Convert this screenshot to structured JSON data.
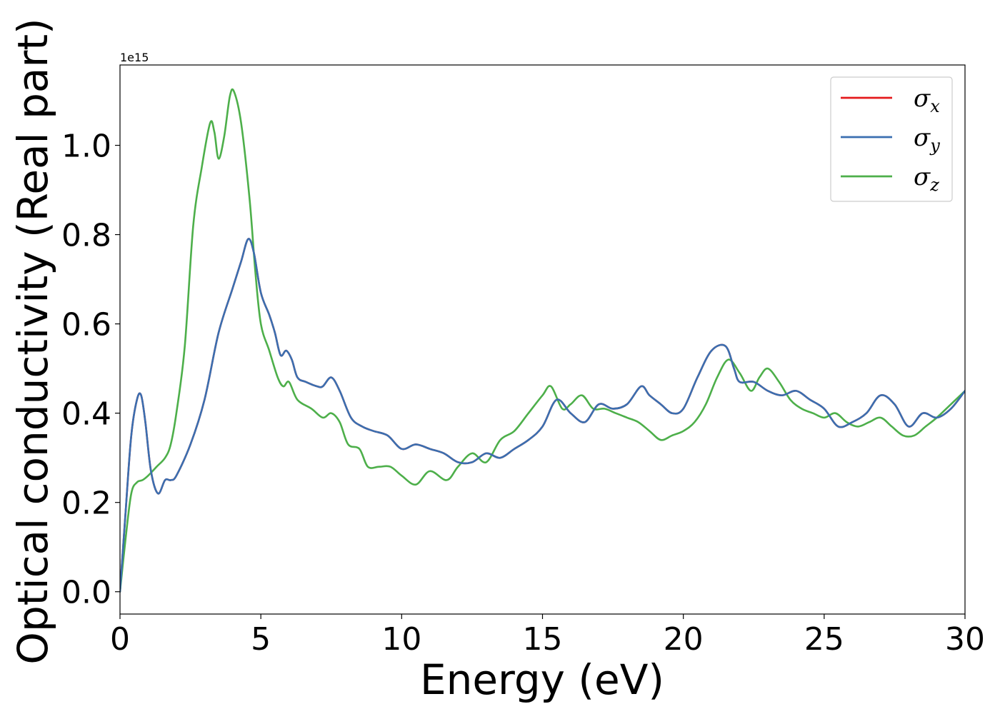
{
  "chart_data": {
    "type": "line",
    "title": "",
    "xlabel": "Energy (eV)",
    "ylabel": "Optical conductivity (Real part)",
    "y_offset_label": "1e15",
    "xlim": [
      0,
      30
    ],
    "ylim": [
      -0.05,
      1.18
    ],
    "x_ticks": [
      0,
      5,
      10,
      15,
      20,
      25,
      30
    ],
    "x_tick_labels": [
      "0",
      "5",
      "10",
      "15",
      "20",
      "25",
      "30"
    ],
    "y_ticks": [
      0.0,
      0.2,
      0.4,
      0.6,
      0.8,
      1.0
    ],
    "y_tick_labels": [
      "0.0",
      "0.2",
      "0.4",
      "0.6",
      "0.8",
      "1.0"
    ],
    "grid": false,
    "legend_position": "top-right",
    "series": [
      {
        "name": "σx",
        "symbol": "σ",
        "subscript": "x",
        "color": "#e41a1c",
        "x": [
          0,
          0.2,
          0.4,
          0.6,
          0.75,
          0.9,
          1.1,
          1.35,
          1.6,
          1.8,
          2.0,
          2.5,
          3.0,
          3.5,
          4.0,
          4.3,
          4.55,
          4.75,
          5.0,
          5.3,
          5.5,
          5.7,
          5.9,
          6.1,
          6.3,
          6.6,
          7.0,
          7.2,
          7.5,
          7.8,
          8.2,
          8.6,
          9.0,
          9.5,
          10.0,
          10.5,
          11.0,
          11.5,
          12.0,
          12.5,
          13.0,
          13.5,
          14.0,
          14.5,
          15.0,
          15.5,
          16.0,
          16.5,
          17.0,
          17.5,
          18.0,
          18.5,
          18.8,
          19.2,
          19.6,
          20.0,
          20.5,
          21.0,
          21.5,
          21.8,
          22.0,
          22.5,
          23.0,
          23.5,
          24.0,
          24.5,
          25.0,
          25.5,
          26.0,
          26.5,
          27.0,
          27.5,
          28.0,
          28.5,
          29.0,
          29.5,
          30.0
        ],
        "y": [
          0.0,
          0.18,
          0.35,
          0.43,
          0.44,
          0.38,
          0.27,
          0.22,
          0.25,
          0.25,
          0.26,
          0.33,
          0.43,
          0.58,
          0.68,
          0.74,
          0.79,
          0.76,
          0.67,
          0.62,
          0.58,
          0.53,
          0.54,
          0.52,
          0.48,
          0.47,
          0.46,
          0.46,
          0.48,
          0.45,
          0.39,
          0.37,
          0.36,
          0.35,
          0.32,
          0.33,
          0.32,
          0.31,
          0.29,
          0.29,
          0.31,
          0.3,
          0.32,
          0.34,
          0.37,
          0.43,
          0.4,
          0.38,
          0.42,
          0.41,
          0.42,
          0.46,
          0.44,
          0.42,
          0.4,
          0.41,
          0.48,
          0.54,
          0.55,
          0.5,
          0.47,
          0.47,
          0.45,
          0.44,
          0.45,
          0.43,
          0.41,
          0.37,
          0.38,
          0.4,
          0.44,
          0.42,
          0.37,
          0.4,
          0.39,
          0.41,
          0.45
        ]
      },
      {
        "name": "σy",
        "symbol": "σ",
        "subscript": "y",
        "color": "#3a6fb0",
        "x": [
          0,
          0.2,
          0.4,
          0.6,
          0.75,
          0.9,
          1.1,
          1.35,
          1.6,
          1.8,
          2.0,
          2.5,
          3.0,
          3.5,
          4.0,
          4.3,
          4.55,
          4.75,
          5.0,
          5.3,
          5.5,
          5.7,
          5.9,
          6.1,
          6.3,
          6.6,
          7.0,
          7.2,
          7.5,
          7.8,
          8.2,
          8.6,
          9.0,
          9.5,
          10.0,
          10.5,
          11.0,
          11.5,
          12.0,
          12.5,
          13.0,
          13.5,
          14.0,
          14.5,
          15.0,
          15.5,
          16.0,
          16.5,
          17.0,
          17.5,
          18.0,
          18.5,
          18.8,
          19.2,
          19.6,
          20.0,
          20.5,
          21.0,
          21.5,
          21.8,
          22.0,
          22.5,
          23.0,
          23.5,
          24.0,
          24.5,
          25.0,
          25.5,
          26.0,
          26.5,
          27.0,
          27.5,
          28.0,
          28.5,
          29.0,
          29.5,
          30.0
        ],
        "y": [
          0.0,
          0.18,
          0.35,
          0.43,
          0.44,
          0.38,
          0.27,
          0.22,
          0.25,
          0.25,
          0.26,
          0.33,
          0.43,
          0.58,
          0.68,
          0.74,
          0.79,
          0.76,
          0.67,
          0.62,
          0.58,
          0.53,
          0.54,
          0.52,
          0.48,
          0.47,
          0.46,
          0.46,
          0.48,
          0.45,
          0.39,
          0.37,
          0.36,
          0.35,
          0.32,
          0.33,
          0.32,
          0.31,
          0.29,
          0.29,
          0.31,
          0.3,
          0.32,
          0.34,
          0.37,
          0.43,
          0.4,
          0.38,
          0.42,
          0.41,
          0.42,
          0.46,
          0.44,
          0.42,
          0.4,
          0.41,
          0.48,
          0.54,
          0.55,
          0.5,
          0.47,
          0.47,
          0.45,
          0.44,
          0.45,
          0.43,
          0.41,
          0.37,
          0.38,
          0.4,
          0.44,
          0.42,
          0.37,
          0.4,
          0.39,
          0.41,
          0.45
        ]
      },
      {
        "name": "σz",
        "symbol": "σ",
        "subscript": "z",
        "color": "#4daf4a",
        "x": [
          0,
          0.2,
          0.4,
          0.6,
          0.8,
          1.0,
          1.3,
          1.6,
          1.8,
          2.0,
          2.3,
          2.6,
          2.9,
          3.2,
          3.35,
          3.5,
          3.7,
          3.9,
          4.05,
          4.3,
          4.6,
          4.8,
          5.0,
          5.3,
          5.6,
          5.8,
          6.0,
          6.3,
          6.8,
          7.2,
          7.5,
          7.8,
          8.1,
          8.5,
          8.8,
          9.2,
          9.6,
          10.0,
          10.5,
          11.0,
          11.6,
          12.0,
          12.5,
          13.0,
          13.5,
          14.0,
          14.5,
          15.0,
          15.3,
          15.7,
          16.0,
          16.4,
          16.8,
          17.2,
          17.6,
          18.0,
          18.4,
          18.8,
          19.2,
          19.6,
          20.0,
          20.4,
          20.8,
          21.2,
          21.6,
          22.0,
          22.4,
          22.7,
          23.0,
          23.4,
          23.8,
          24.2,
          24.6,
          25.0,
          25.4,
          25.8,
          26.2,
          26.6,
          27.0,
          27.4,
          27.8,
          28.2,
          28.6,
          29.0,
          29.5,
          30.0
        ],
        "y": [
          0.0,
          0.12,
          0.22,
          0.245,
          0.25,
          0.26,
          0.28,
          0.3,
          0.33,
          0.4,
          0.55,
          0.82,
          0.95,
          1.05,
          1.03,
          0.97,
          1.02,
          1.11,
          1.12,
          1.05,
          0.88,
          0.72,
          0.6,
          0.54,
          0.48,
          0.46,
          0.47,
          0.43,
          0.41,
          0.39,
          0.4,
          0.38,
          0.33,
          0.32,
          0.28,
          0.28,
          0.28,
          0.26,
          0.24,
          0.27,
          0.25,
          0.28,
          0.31,
          0.29,
          0.34,
          0.36,
          0.4,
          0.44,
          0.46,
          0.41,
          0.42,
          0.44,
          0.41,
          0.41,
          0.4,
          0.39,
          0.38,
          0.36,
          0.34,
          0.35,
          0.36,
          0.38,
          0.42,
          0.48,
          0.52,
          0.49,
          0.45,
          0.48,
          0.5,
          0.47,
          0.43,
          0.41,
          0.4,
          0.39,
          0.4,
          0.38,
          0.37,
          0.38,
          0.39,
          0.37,
          0.35,
          0.35,
          0.37,
          0.39,
          0.42,
          0.45
        ]
      }
    ]
  }
}
